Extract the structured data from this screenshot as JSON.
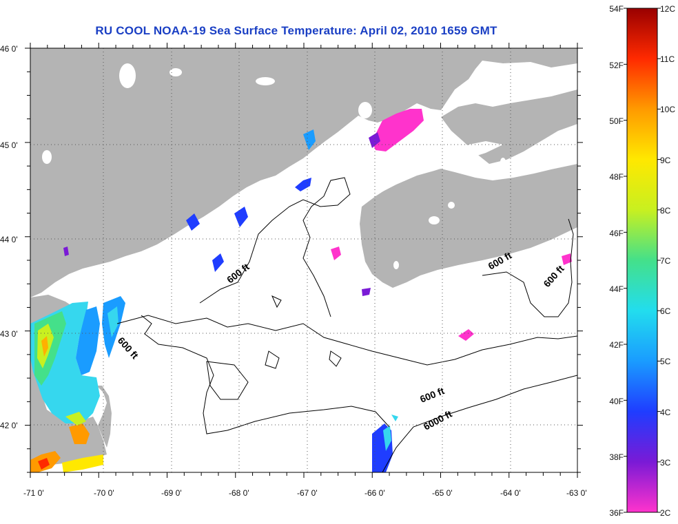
{
  "title": "RU COOL  NOAA-19  Sea Surface Temperature:  April 02, 2010 1659 GMT",
  "map": {
    "lon_range": [
      -71,
      -63
    ],
    "lat_range": [
      41.5,
      46
    ],
    "lon_ticks": [
      "-71 0'",
      "-70 0'",
      "-69 0'",
      "-68 0'",
      "-67 0'",
      "-66 0'",
      "-65 0'",
      "-64 0'",
      "-63 0'"
    ],
    "lat_ticks": [
      "46 0'",
      "45 0'",
      "44 0'",
      "43 0'",
      "42 0'"
    ],
    "contour_labels": [
      "600 ft",
      "600 ft",
      "600 ft",
      "600 ft",
      "600 ft",
      "6000 ft"
    ],
    "land_color": "#b4b4b4",
    "ocean_color": "#ffffff"
  },
  "colorbar": {
    "fahrenheit_labels": [
      "54F",
      "52F",
      "50F",
      "48F",
      "46F",
      "44F",
      "42F",
      "40F",
      "38F",
      "36F"
    ],
    "celsius_labels": [
      "12C",
      "11C",
      "10C",
      "9C",
      "8C",
      "7C",
      "6C",
      "5C",
      "4C",
      "3C",
      "2C"
    ],
    "range_c": [
      2,
      12
    ],
    "colors": [
      "#ff33cc",
      "#7a1ad6",
      "#1f3dff",
      "#1a9cff",
      "#22ddee",
      "#44e08a",
      "#c8f020",
      "#ffe800",
      "#ff9a00",
      "#ff2a00",
      "#990000"
    ]
  }
}
